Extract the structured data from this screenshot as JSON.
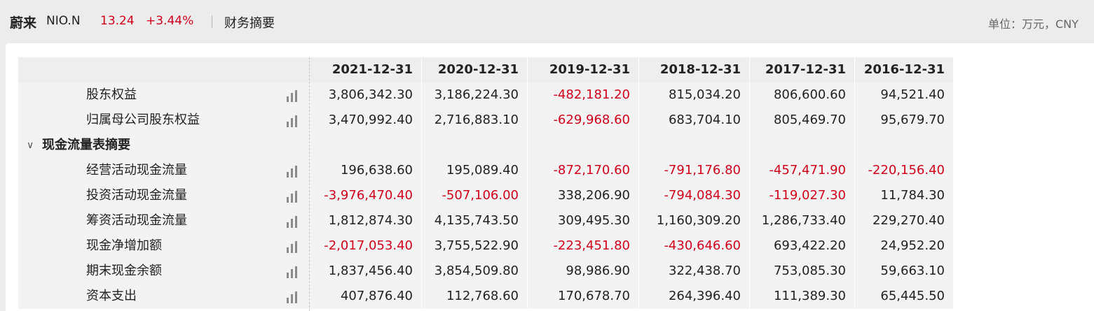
{
  "header": {
    "name": "蔚来",
    "code": "NIO.N",
    "price": "13.24",
    "change": "+3.44%",
    "section": "财务摘要",
    "unit": "单位：万元，CNY"
  },
  "table": {
    "columns": [
      "2021-12-31",
      "2020-12-31",
      "2019-12-31",
      "2018-12-31",
      "2017-12-31",
      "2016-12-31"
    ],
    "rows": [
      {
        "label": "股东权益",
        "values": [
          "3,806,342.30",
          "3,186,224.30",
          "-482,181.20",
          "815,034.20",
          "806,600.60",
          "94,521.40"
        ]
      },
      {
        "label": "归属母公司股东权益",
        "values": [
          "3,470,992.40",
          "2,716,883.10",
          "-629,968.60",
          "683,704.10",
          "805,469.70",
          "95,679.70"
        ]
      },
      {
        "label": "现金流量表摘要",
        "section": true
      },
      {
        "label": "经营活动现金流量",
        "values": [
          "196,638.60",
          "195,089.40",
          "-872,170.60",
          "-791,176.80",
          "-457,471.90",
          "-220,156.40"
        ]
      },
      {
        "label": "投资活动现金流量",
        "values": [
          "-3,976,470.40",
          "-507,106.00",
          "338,206.90",
          "-794,084.30",
          "-119,027.30",
          "11,784.30"
        ]
      },
      {
        "label": "筹资活动现金流量",
        "values": [
          "1,812,874.30",
          "4,135,743.50",
          "309,495.30",
          "1,160,309.20",
          "1,286,733.40",
          "229,270.40"
        ]
      },
      {
        "label": "现金净增加额",
        "values": [
          "-2,017,053.40",
          "3,755,522.90",
          "-223,451.80",
          "-430,646.60",
          "693,422.20",
          "24,952.20"
        ]
      },
      {
        "label": "期末现金余额",
        "values": [
          "1,837,456.40",
          "3,854,509.80",
          "98,986.90",
          "322,438.70",
          "753,085.30",
          "59,663.10"
        ]
      },
      {
        "label": "资本支出",
        "values": [
          "407,876.40",
          "112,768.60",
          "170,678.70",
          "264,396.40",
          "111,389.30",
          "65,445.50"
        ]
      }
    ]
  },
  "icons": {
    "chart": "bar-chart-icon",
    "collapse": "chevron-down-icon"
  },
  "colors": {
    "negative": "#d0021b",
    "price": "#d0021b"
  }
}
